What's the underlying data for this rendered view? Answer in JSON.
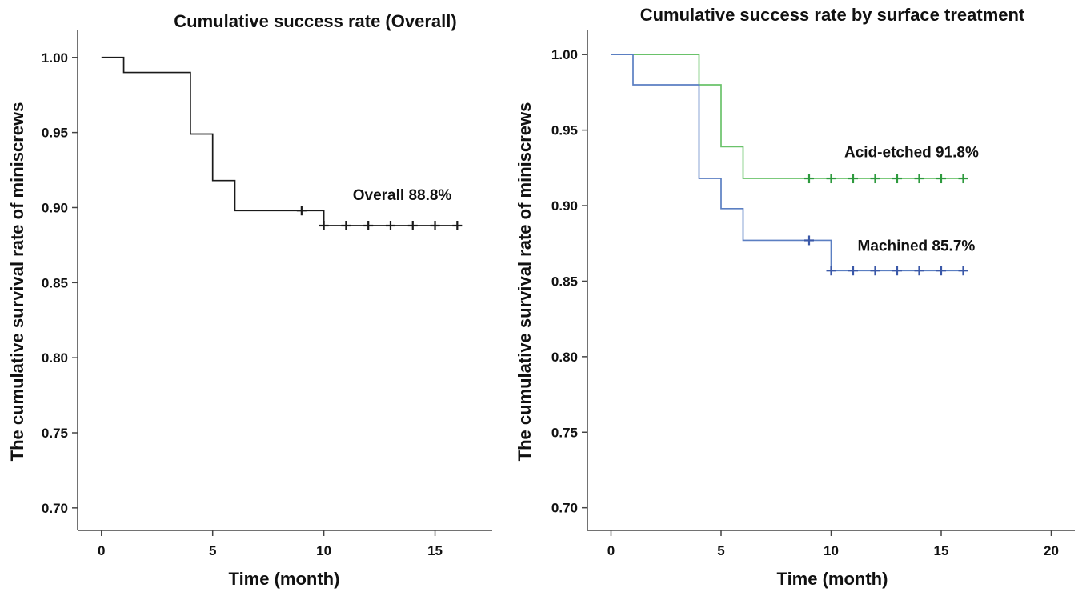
{
  "chart_data": [
    {
      "type": "line",
      "title": "Cumulative success rate (Overall)",
      "xlabel": "Time (month)",
      "ylabel": "The cumulative survival rate of miniscrews",
      "xlim": [
        -1,
        17.5
      ],
      "ylim": [
        0.685,
        1.018
      ],
      "xticks": [
        0,
        5,
        10,
        15
      ],
      "yticks": [
        0.7,
        0.75,
        0.8,
        0.85,
        0.9,
        0.95,
        1.0
      ],
      "ytick_labels": [
        "0.70",
        "0.75",
        "0.80",
        "0.85",
        "0.90",
        "0.95",
        "1.00"
      ],
      "grid": false,
      "series": [
        {
          "color": "#1a1a1a",
          "step_x": [
            0,
            1,
            4,
            5,
            6,
            10,
            16
          ],
          "step_y": [
            1.0,
            0.99,
            0.949,
            0.918,
            0.898,
            0.888,
            0.888
          ],
          "censored": [
            [
              9,
              0.898
            ],
            [
              10,
              0.888
            ],
            [
              11,
              0.888
            ],
            [
              12,
              0.888
            ],
            [
              13,
              0.888
            ],
            [
              14,
              0.888
            ],
            [
              15,
              0.888
            ],
            [
              16,
              0.888
            ]
          ]
        }
      ],
      "annotations": [
        {
          "text": "Overall 88.8%",
          "x": 11.3,
          "y": 0.905
        }
      ]
    },
    {
      "type": "line",
      "title": "Cumulative success rate by surface treatment",
      "xlabel": "Time (month)",
      "ylabel": "The cumulative survival rate of miniscrews",
      "xlim": [
        -1,
        21
      ],
      "ylim": [
        0.685,
        1.016
      ],
      "xticks": [
        0,
        5,
        10,
        15,
        20
      ],
      "yticks": [
        0.7,
        0.75,
        0.8,
        0.85,
        0.9,
        0.95,
        1.0
      ],
      "ytick_labels": [
        "0.70",
        "0.75",
        "0.80",
        "0.85",
        "0.90",
        "0.95",
        "1.00"
      ],
      "grid": false,
      "series": [
        {
          "color": "#6ac26a",
          "mark_color": "#2e9a3e",
          "step_x": [
            0,
            4,
            5,
            6,
            16
          ],
          "step_y": [
            1.0,
            0.98,
            0.939,
            0.918,
            0.918
          ],
          "censored": [
            [
              9,
              0.918
            ],
            [
              10,
              0.918
            ],
            [
              11,
              0.918
            ],
            [
              12,
              0.918
            ],
            [
              13,
              0.918
            ],
            [
              14,
              0.918
            ],
            [
              15,
              0.918
            ],
            [
              16,
              0.918
            ]
          ]
        },
        {
          "color": "#5b7fc2",
          "mark_color": "#3a58a8",
          "step_x": [
            0,
            1,
            4,
            5,
            6,
            10,
            16
          ],
          "step_y": [
            1.0,
            0.98,
            0.918,
            0.898,
            0.877,
            0.857,
            0.857
          ],
          "censored": [
            [
              9,
              0.877
            ],
            [
              10,
              0.857
            ],
            [
              11,
              0.857
            ],
            [
              12,
              0.857
            ],
            [
              13,
              0.857
            ],
            [
              14,
              0.857
            ],
            [
              15,
              0.857
            ],
            [
              16,
              0.857
            ]
          ]
        }
      ],
      "annotations": [
        {
          "text": "Acid-etched 91.8%",
          "x": 10.6,
          "y": 0.932
        },
        {
          "text": "Machined 85.7%",
          "x": 11.2,
          "y": 0.87
        }
      ]
    }
  ]
}
